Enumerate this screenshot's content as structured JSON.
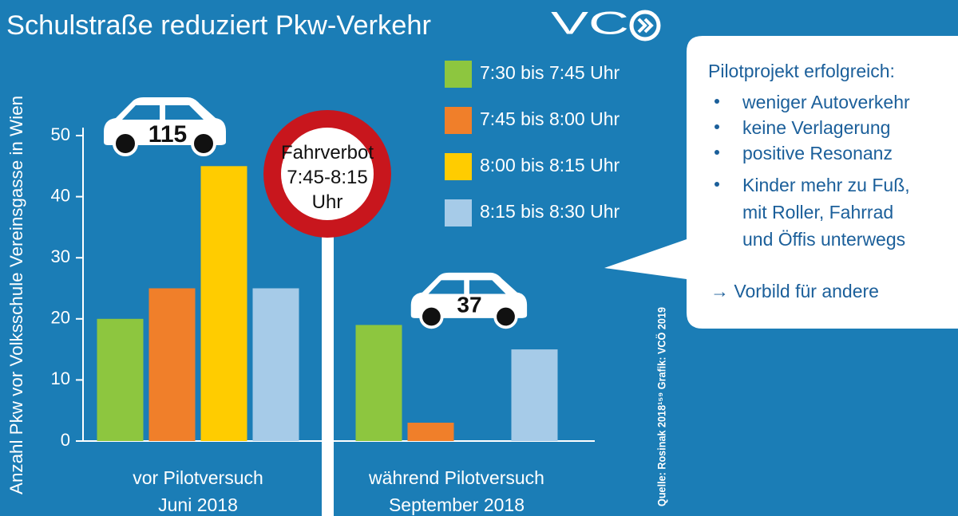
{
  "chart_data": {
    "type": "bar",
    "title": "Schulstraße reduziert Pkw-Verkehr",
    "logo": "VC",
    "y_axis_label": "Anzahl Pkw vor Volksschule Vereinsgasse in Wien",
    "categories": [
      "vor Pilotversuch\nJuni 2018",
      "während Pilotversuch\nSeptember 2018"
    ],
    "series": [
      {
        "name": "7:30 bis 7:45 Uhr",
        "color": "#8dc63f",
        "values": [
          20,
          19
        ]
      },
      {
        "name": "7:45 bis 8:00 Uhr",
        "color": "#f07f2a",
        "values": [
          25,
          3
        ]
      },
      {
        "name": "8:00 bis 8:15 Uhr",
        "color": "#ffcc00",
        "values": [
          45,
          0
        ]
      },
      {
        "name": "8:15 bis 8:30 Uhr",
        "color": "#a6cbe8",
        "values": [
          25,
          15
        ]
      }
    ],
    "totals": [
      115,
      37
    ],
    "ylim": [
      0,
      50
    ],
    "yticks": [
      0,
      10,
      20,
      30,
      40,
      50
    ],
    "sign": "Fahrverbot\n7:45-8:15\nUhr",
    "callout": {
      "heading": "Pilotprojekt erfolgreich:",
      "bullets": [
        "weniger Autoverkehr",
        "keine Verlagerung",
        "positive Resonanz",
        "Kinder mehr zu Fuß,\nmit Roller, Fahrrad\nund Öffis unterwegs"
      ],
      "conclusion": "→ Vorbild für andere"
    },
    "source": "Quelle: Rosinak 2018¹⁵⁹ Grafik: VCÖ 2019"
  }
}
